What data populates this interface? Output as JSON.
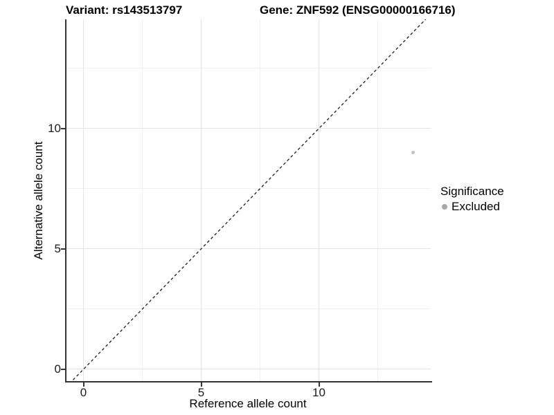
{
  "header": {
    "variant_title": "Variant: rs143513797",
    "gene_title": "Gene: ZNF592 (ENSG00000166716)"
  },
  "colors": {
    "point": "#c0c0c0",
    "legend_key": "#a8a8a8",
    "axis_line": "#333333",
    "grid_major": "#e3e3e3",
    "grid_minor": "#f0f0f0",
    "dashed_line": "#1a1a1a",
    "background": "#ffffff"
  },
  "chart_data": {
    "type": "scatter",
    "title": "Variant: rs143513797   Gene: ZNF592 (ENSG00000166716)",
    "xlabel": "Reference allele count",
    "ylabel": "Alternative allele count",
    "xlim": [
      -0.75,
      14.75
    ],
    "ylim": [
      -0.52,
      14.53
    ],
    "major_breaks": [
      0,
      5,
      10
    ],
    "minor_breaks": [
      2.5,
      7.5,
      12.5
    ],
    "x_tick_labels": [
      "0",
      "5",
      "10"
    ],
    "y_tick_labels": [
      "0",
      "5",
      "10"
    ],
    "grid": "major and minor gridlines, light gray on white",
    "points": [
      {
        "x": 14,
        "y": 9,
        "significance": "Excluded"
      }
    ],
    "identity_line": {
      "equation": "y = x",
      "style": "dashed",
      "from": -0.75,
      "to": 14.75
    },
    "legend": {
      "title": "Significance",
      "position": "right",
      "items": [
        {
          "label": "Excluded",
          "shape": "circle",
          "color": "#a8a8a8"
        }
      ]
    }
  }
}
